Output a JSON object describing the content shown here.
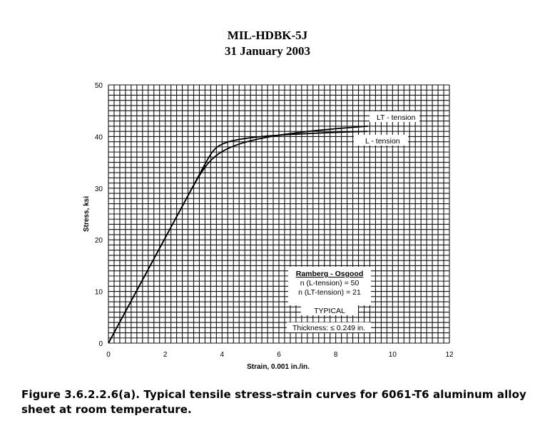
{
  "header": {
    "line1": "MIL-HDBK-5J",
    "line2": "31 January 2003"
  },
  "caption": {
    "line1": "Figure 3.6.2.2.6(a).  Typical tensile stress-strain curves for 6061-T6 aluminum alloy",
    "line2": "sheet at room temperature."
  },
  "chart_data": {
    "type": "line",
    "xlabel": "Strain, 0.001 in./in.",
    "ylabel": "Stress, ksi",
    "xlim": [
      0,
      12
    ],
    "ylim": [
      0,
      50
    ],
    "xticks": [
      "0",
      "2",
      "4",
      "6",
      "8",
      "10",
      "12"
    ],
    "yticks": [
      "0",
      "10",
      "20",
      "30",
      "40",
      "50"
    ],
    "grid": true,
    "series": [
      {
        "name": "LT - tension",
        "model": {
          "E": 10.2,
          "Fty": 40.2,
          "n": 21
        },
        "y_end": 42
      },
      {
        "name": "L - tension",
        "model": {
          "E": 10.2,
          "Fty": 40.24,
          "n": 50
        },
        "y_end": 41
      }
    ],
    "legend": {
      "title": "Ramberg - Osgood",
      "line1": "n (L-tension) = 50",
      "line2": "n (LT-tension) = 21"
    },
    "note1": "TYPICAL",
    "note2": "Thickness: ≤ 0.249 in."
  }
}
